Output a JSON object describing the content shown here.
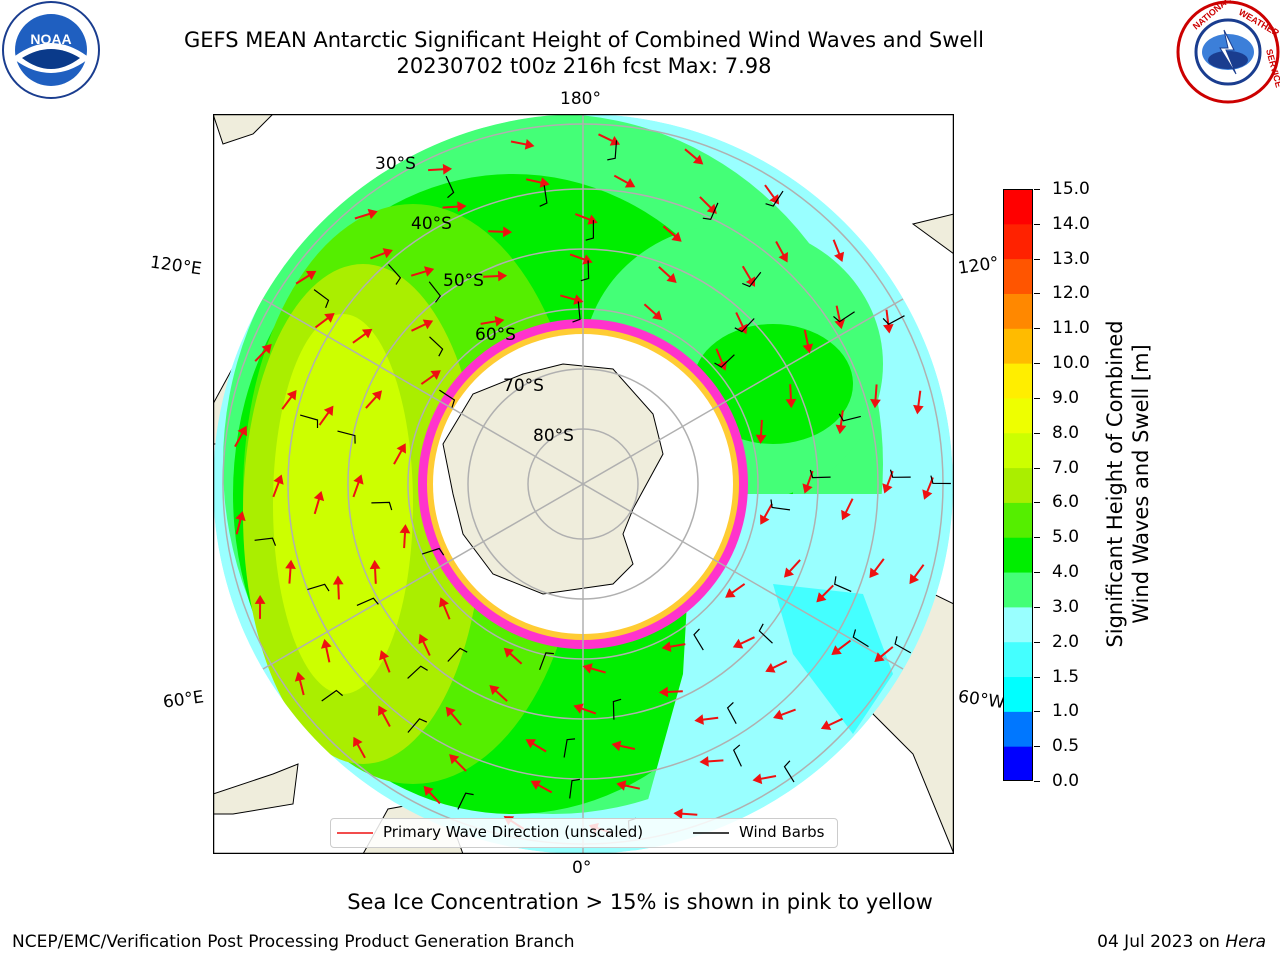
{
  "header": {
    "title_line1": "GEFS MEAN Antarctic Significant Height of Combined Wind Waves and Swell",
    "title_line2": "20230702 t00z 216h fcst   Max: 7.98"
  },
  "map": {
    "projection": "south-polar-stereographic",
    "longitude_labels": {
      "top": "180°",
      "bottom": "0°",
      "upper_left": "120°E",
      "upper_right": "120°",
      "lower_left": "60°E",
      "lower_right": "60°W"
    },
    "latitude_labels": [
      "30°S",
      "40°S",
      "50°S",
      "60°S",
      "70°S",
      "80°S"
    ],
    "legend": {
      "wave_direction": "Primary Wave Direction (unscaled)",
      "wind_barbs": "Wind Barbs"
    },
    "colors": {
      "land": "#efeddc",
      "ocean_outside": "#ffffff",
      "sea_ice": "#ff33cc",
      "arrows": "#ee1111",
      "barbs": "#000000",
      "grid": "#b0b0b0"
    }
  },
  "colorbar": {
    "label_line1": "Significant Height of Combined",
    "label_line2": "Wind Waves and Swell [m]",
    "ticks": [
      "15.0",
      "14.0",
      "13.0",
      "12.0",
      "11.0",
      "10.0",
      "9.0",
      "8.0",
      "7.0",
      "6.0",
      "5.0",
      "4.0",
      "3.0",
      "2.0",
      "1.5",
      "1.0",
      "0.5",
      "0.0"
    ],
    "colors_bottom_to_top": [
      "#0000ff",
      "#0077ff",
      "#00ffff",
      "#44ffff",
      "#99ffff",
      "#44ff77",
      "#00ee00",
      "#55ee00",
      "#aaee00",
      "#ccff00",
      "#eeff00",
      "#ffee00",
      "#ffbb00",
      "#ff8800",
      "#ff5500",
      "#ff2200",
      "#ff0000"
    ]
  },
  "footer": {
    "note": "Sea Ice Concentration > 15% is shown in pink to yellow",
    "left": "NCEP/EMC/Verification Post Processing Product Generation Branch",
    "right_date": "04 Jul 2023 on ",
    "right_host": "Hera"
  }
}
